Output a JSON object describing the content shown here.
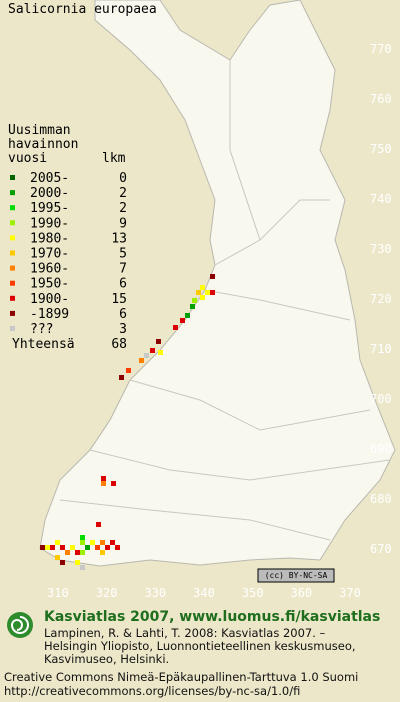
{
  "title": "Salicornia europaea",
  "legend": {
    "header": [
      "Uusimman",
      "havainnon",
      "vuosi"
    ],
    "count_header": "lkm",
    "rows": [
      {
        "label": "2005-",
        "count": 0,
        "color": "#006400"
      },
      {
        "label": "2000-",
        "count": 2,
        "color": "#00a000"
      },
      {
        "label": "1995-",
        "count": 2,
        "color": "#00dc00"
      },
      {
        "label": "1990-",
        "count": 9,
        "color": "#9cf000"
      },
      {
        "label": "1980-",
        "count": 13,
        "color": "#ffff00"
      },
      {
        "label": "1970-",
        "count": 5,
        "color": "#ffc800"
      },
      {
        "label": "1960-",
        "count": 7,
        "color": "#ff8000"
      },
      {
        "label": "1950-",
        "count": 6,
        "color": "#ff3c00"
      },
      {
        "label": "1900-",
        "count": 15,
        "color": "#dc0000"
      },
      {
        "label": "-1899",
        "count": 6,
        "color": "#8c0000"
      },
      {
        "label": "???",
        "count": 3,
        "color": "#c8c8c8"
      }
    ],
    "total_label": "Yhteensä",
    "total": 68
  },
  "y_labels": [
    770,
    760,
    750,
    740,
    730,
    720,
    710,
    700,
    690,
    680,
    670
  ],
  "x_labels": [
    310,
    320,
    330,
    340,
    350,
    360,
    370
  ],
  "badge": "(cc) BY-NC-SA",
  "footer": {
    "site": "Kasviatlas 2007, www.luomus.fi/kasviatlas",
    "citation": [
      "Lampinen, R. & Lahti, T. 2008: Kasviatlas 2007. –",
      "Helsingin Yliopisto, Luonnontieteellinen keskusmuseo,",
      "Kasvimuseo, Helsinki."
    ],
    "license": [
      "Creative Commons Nimeä-Epäkaupallinen-Tarttuva 1.0 Suomi",
      "http://creativecommons.org/licenses/by-nc-sa/1.0/fi"
    ]
  }
}
